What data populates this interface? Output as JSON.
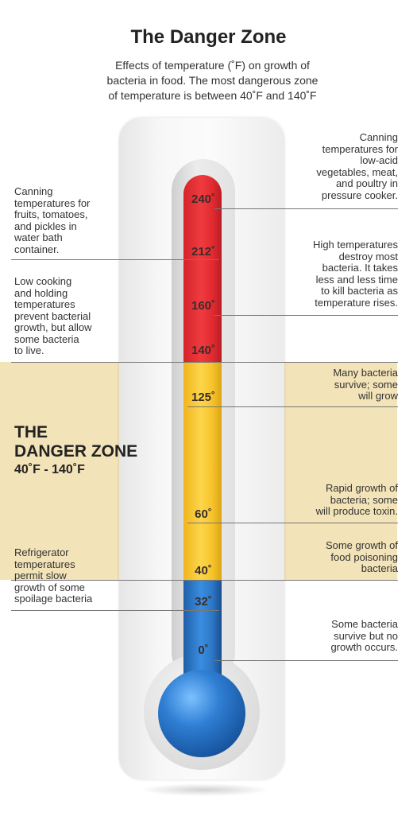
{
  "header": {
    "title": "The Danger Zone",
    "subtitle_line1": "Effects of temperature (˚F) on growth of",
    "subtitle_line2": "bacteria in food. The most dangerous zone",
    "subtitle_line3": "of temperature is between 40˚F and 140˚F"
  },
  "zone": {
    "title_line1": "THE",
    "title_line2": "DANGER ZONE",
    "range": "40˚F - 140˚F",
    "band_color": "#f3e3b8"
  },
  "colors": {
    "hot": "#e32b31",
    "danger": "#fcd54a",
    "cold": "#2d78c7"
  },
  "ticks": [
    "240˚",
    "212˚",
    "160˚",
    "140˚",
    "125˚",
    "60˚",
    "40˚",
    "32˚",
    "0˚"
  ],
  "left_notes": [
    {
      "lines": [
        "Canning",
        "temperatures for",
        "fruits, tomatoes,",
        "and pickles in",
        "water bath",
        "container."
      ]
    },
    {
      "lines": [
        "Low cooking",
        "and holding",
        "temperatures",
        "prevent bacterial",
        "growth, but allow",
        "some bacteria",
        "to live."
      ]
    },
    {
      "lines": [
        "Refrigerator",
        "temperatures",
        "permit slow",
        "growth of some",
        "spoilage bacteria"
      ]
    }
  ],
  "right_notes": [
    {
      "lines": [
        "Canning",
        "temperatures for",
        "low-acid",
        "vegetables, meat,",
        "and poultry in",
        "pressure cooker."
      ]
    },
    {
      "lines": [
        "High temperatures",
        "destroy most",
        "bacteria. It takes",
        "less and less time",
        "to kill bacteria as",
        "temperature rises."
      ]
    },
    {
      "lines": [
        "Many bacteria",
        "survive; some",
        "will grow"
      ]
    },
    {
      "lines": [
        "Rapid growth of",
        "bacteria; some",
        "will produce toxin."
      ]
    },
    {
      "lines": [
        "Some growth of",
        "food poisoning",
        "bacteria"
      ]
    },
    {
      "lines": [
        "Some bacteria",
        "survive but no",
        "growth occurs."
      ]
    }
  ]
}
